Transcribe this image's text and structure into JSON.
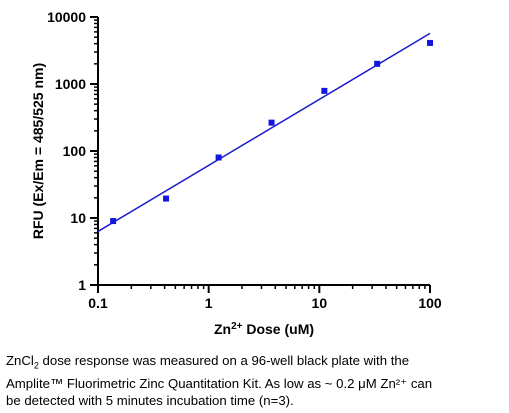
{
  "chart_data": {
    "type": "scatter",
    "xscale": "log",
    "yscale": "log",
    "xlim": [
      0.1,
      100
    ],
    "ylim": [
      1,
      10000
    ],
    "x_ticks": [
      "0.1",
      "1",
      "10",
      "100"
    ],
    "y_ticks": [
      "1",
      "10",
      "100",
      "1000",
      "10000"
    ],
    "xlabel_prefix": "Zn",
    "xlabel_sup": "2+",
    "xlabel_suffix": " Dose (uM)",
    "ylabel": "RFU (Ex/Em = 485/525 nm)",
    "colors": {
      "points": "#1515e0",
      "fit": "#1a1acc",
      "axis": "#000000"
    },
    "points": [
      {
        "x": 0.137,
        "y": 9
      },
      {
        "x": 0.412,
        "y": 19.5
      },
      {
        "x": 1.23,
        "y": 80
      },
      {
        "x": 3.7,
        "y": 265
      },
      {
        "x": 11.1,
        "y": 790
      },
      {
        "x": 33.3,
        "y": 2000
      },
      {
        "x": 100,
        "y": 4100
      }
    ],
    "fit_line": [
      {
        "x": 0.1,
        "y": 6.3
      },
      {
        "x": 100,
        "y": 5700
      }
    ]
  },
  "caption": {
    "line1_a": "ZnCl",
    "line1_sub": "2",
    "line1_b": " dose response was measured on a 96-well black plate with the",
    "line2": "Amplite™ Fluorimetric Zinc Quantitation Kit. As low as ~ 0.2 μM Zn²⁺ can",
    "line3": "be detected with 5 minutes incubation time (n=3)."
  }
}
